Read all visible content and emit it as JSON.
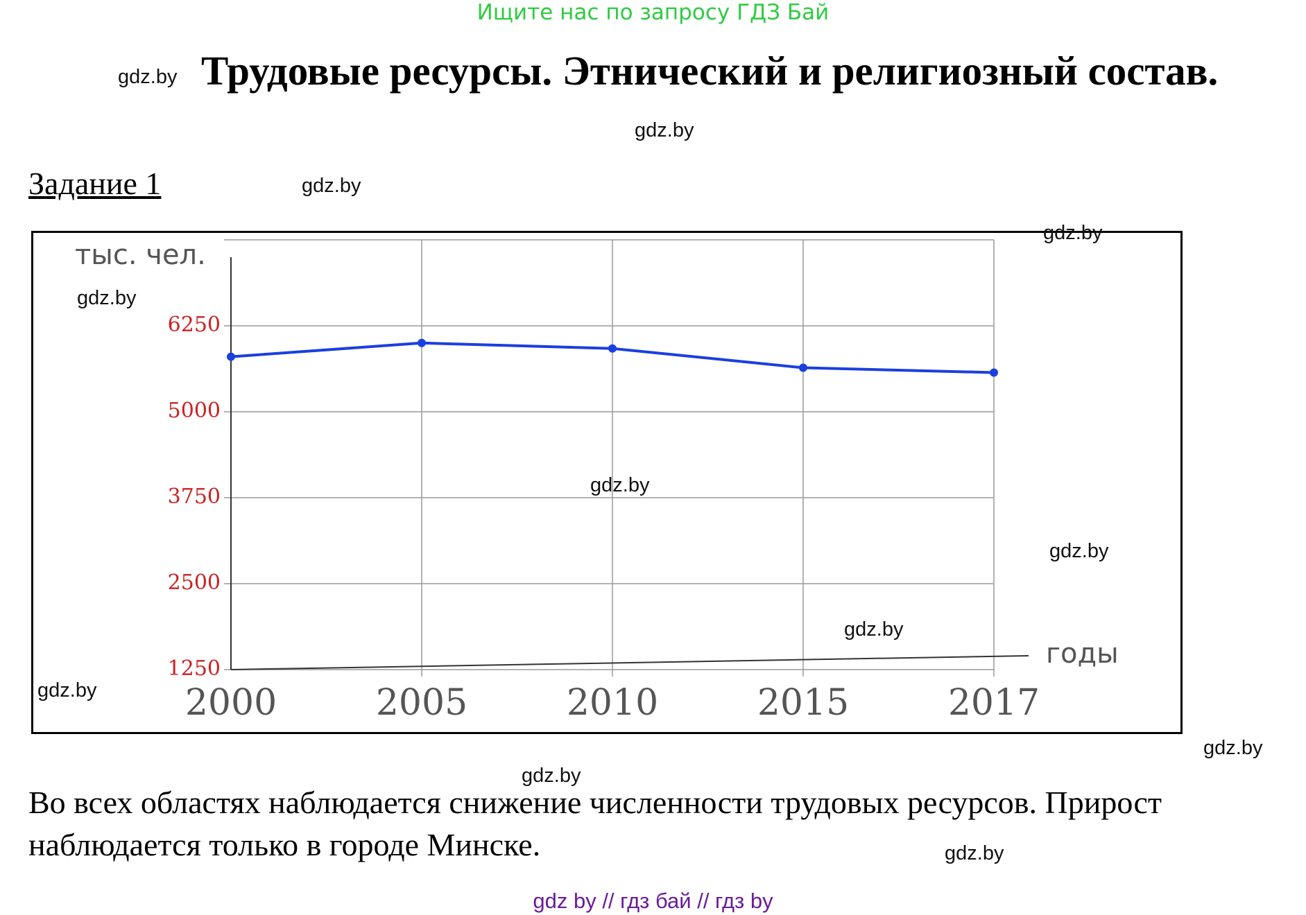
{
  "header": {
    "search_hint": "Ищите нас по запросу ГДЗ Бай",
    "title": "Трудовые ресурсы. Этнический и религиозный состав."
  },
  "task": {
    "label": "Задание 1"
  },
  "watermark": "gdz.by",
  "chart_data": {
    "type": "line",
    "title": "",
    "ylabel": "тыс. чел.",
    "xlabel": "годы",
    "categories": [
      "2000",
      "2005",
      "2010",
      "2015",
      "2017"
    ],
    "y_ticks": [
      1250,
      2500,
      3750,
      5000,
      6250
    ],
    "ylim": [
      1250,
      7500
    ],
    "grid": true,
    "series": [
      {
        "values": [
          5800,
          6000,
          5920,
          5640,
          5570
        ],
        "color": "#1a3fe0"
      }
    ],
    "tick_color": "#cc2222"
  },
  "answer": {
    "text": "Во всех областях наблюдается снижение численности трудовых ресурсов. Прирост наблюдается только в городе Минске."
  },
  "footer": {
    "text": "gdz by  //  гдз бай  //  гдз by"
  }
}
